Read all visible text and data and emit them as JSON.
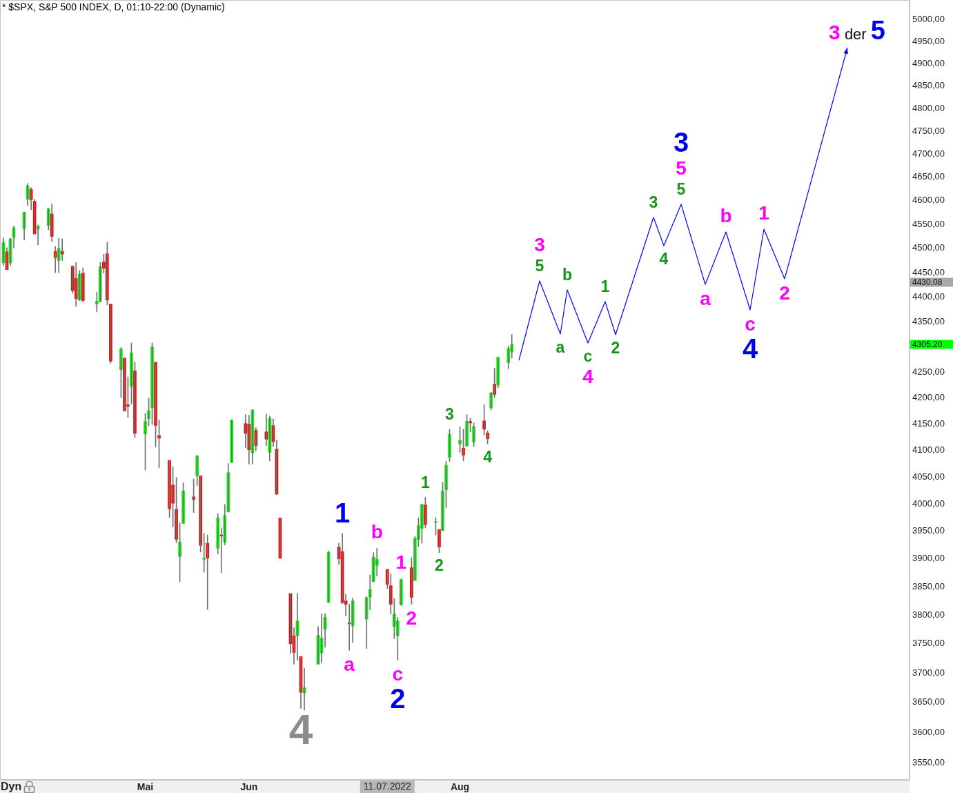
{
  "chart_data": {
    "type": "candlestick",
    "title": "* $SPX, S&P 500 INDEX, D, 01:10-22:00 (Dynamic)",
    "log": true,
    "ylim": [
      3522,
      5046
    ],
    "yticks": [
      {
        "value": 3550,
        "label": "3550,00"
      },
      {
        "value": 3600,
        "label": "3600,00"
      },
      {
        "value": 3650,
        "label": "3650,00"
      },
      {
        "value": 3700,
        "label": "3700,00"
      },
      {
        "value": 3750,
        "label": "3750,00"
      },
      {
        "value": 3800,
        "label": "3800,00"
      },
      {
        "value": 3850,
        "label": "3850,00"
      },
      {
        "value": 3900,
        "label": "3900,00"
      },
      {
        "value": 3950,
        "label": "3950,00"
      },
      {
        "value": 4000,
        "label": "4000,00"
      },
      {
        "value": 4050,
        "label": "4050,00"
      },
      {
        "value": 4100,
        "label": "4100,00"
      },
      {
        "value": 4150,
        "label": "4150,00"
      },
      {
        "value": 4200,
        "label": "4200,00"
      },
      {
        "value": 4250,
        "label": "4250,00"
      },
      {
        "value": 4350,
        "label": "4350,00"
      },
      {
        "value": 4400,
        "label": "4400,00"
      },
      {
        "value": 4450,
        "label": "4450,00"
      },
      {
        "value": 4500,
        "label": "4500,00"
      },
      {
        "value": 4550,
        "label": "4550,00"
      },
      {
        "value": 4600,
        "label": "4600,00"
      },
      {
        "value": 4650,
        "label": "4650,00"
      },
      {
        "value": 4700,
        "label": "4700,00"
      },
      {
        "value": 4750,
        "label": "4750,00"
      },
      {
        "value": 4800,
        "label": "4800,00"
      },
      {
        "value": 4850,
        "label": "4850,00"
      },
      {
        "value": 4900,
        "label": "4900,00"
      },
      {
        "value": 4950,
        "label": "4950,00"
      },
      {
        "value": 5000,
        "label": "5000,00"
      }
    ],
    "xlim": [
      "2022-03-21",
      "2022-12-09"
    ],
    "xticks": [
      {
        "value": "2022-05-02",
        "label": "Mai"
      },
      {
        "value": "2022-06-01",
        "label": "Jun"
      },
      {
        "value": "2022-08-01",
        "label": "Aug"
      }
    ],
    "x": [
      "2022-03-22",
      "2022-03-23",
      "2022-03-24",
      "2022-03-25",
      "2022-03-28",
      "2022-03-29",
      "2022-03-30",
      "2022-03-31",
      "2022-04-01",
      "2022-04-04",
      "2022-04-05",
      "2022-04-06",
      "2022-04-07",
      "2022-04-08",
      "2022-04-11",
      "2022-04-12",
      "2022-04-13",
      "2022-04-14",
      "2022-04-18",
      "2022-04-19",
      "2022-04-20",
      "2022-04-21",
      "2022-04-22",
      "2022-04-25",
      "2022-04-26",
      "2022-04-27",
      "2022-04-28",
      "2022-04-29",
      "2022-05-02",
      "2022-05-03",
      "2022-05-04",
      "2022-05-05",
      "2022-05-06",
      "2022-05-09",
      "2022-05-10",
      "2022-05-11",
      "2022-05-12",
      "2022-05-13",
      "2022-05-16",
      "2022-05-17",
      "2022-05-18",
      "2022-05-19",
      "2022-05-20",
      "2022-05-23",
      "2022-05-24",
      "2022-05-25",
      "2022-05-26",
      "2022-05-27",
      "2022-05-31",
      "2022-06-01",
      "2022-06-02",
      "2022-06-03",
      "2022-06-06",
      "2022-06-07",
      "2022-06-08",
      "2022-06-09",
      "2022-06-10",
      "2022-06-13",
      "2022-06-14",
      "2022-06-15",
      "2022-06-16",
      "2022-06-17",
      "2022-06-21",
      "2022-06-22",
      "2022-06-23",
      "2022-06-24",
      "2022-06-27",
      "2022-06-28",
      "2022-06-29",
      "2022-06-30",
      "2022-07-01",
      "2022-07-05",
      "2022-07-06",
      "2022-07-07",
      "2022-07-08",
      "2022-07-11",
      "2022-07-12",
      "2022-07-13",
      "2022-07-14",
      "2022-07-15",
      "2022-07-18",
      "2022-07-19",
      "2022-07-20",
      "2022-07-21",
      "2022-07-22",
      "2022-07-25",
      "2022-07-26",
      "2022-07-27",
      "2022-07-28",
      "2022-07-29",
      "2022-08-01",
      "2022-08-02",
      "2022-08-03",
      "2022-08-04",
      "2022-08-05",
      "2022-08-08",
      "2022-08-09",
      "2022-08-10",
      "2022-08-11",
      "2022-08-12",
      "2022-08-15",
      "2022-08-16"
    ],
    "ohlc": [
      [
        4470,
        4522,
        4465,
        4512
      ],
      [
        4493,
        4501,
        4456,
        4456
      ],
      [
        4470,
        4521,
        4465,
        4520
      ],
      [
        4523,
        4546,
        4501,
        4543
      ],
      [
        4541,
        4576,
        4518,
        4576
      ],
      [
        4603,
        4637,
        4590,
        4632
      ],
      [
        4624,
        4628,
        4581,
        4602
      ],
      [
        4599,
        4603,
        4530,
        4530
      ],
      [
        4540,
        4549,
        4507,
        4546
      ],
      [
        4548,
        4584,
        4539,
        4583
      ],
      [
        4572,
        4593,
        4514,
        4525
      ],
      [
        4494,
        4504,
        4450,
        4481
      ],
      [
        4475,
        4521,
        4450,
        4500
      ],
      [
        4494,
        4520,
        4475,
        4488
      ],
      [
        4463,
        4464,
        4408,
        4413
      ],
      [
        4438,
        4471,
        4381,
        4397
      ],
      [
        4394,
        4454,
        4393,
        4447
      ],
      [
        4449,
        4460,
        4391,
        4393
      ],
      [
        4386,
        4410,
        4370,
        4392
      ],
      [
        4391,
        4471,
        4390,
        4462
      ],
      [
        4472,
        4488,
        4449,
        4459
      ],
      [
        4489,
        4513,
        4384,
        4394
      ],
      [
        4386,
        4386,
        4268,
        4272
      ],
      [
        4255,
        4299,
        4201,
        4296
      ],
      [
        4278,
        4278,
        4175,
        4175
      ],
      [
        4187,
        4241,
        4163,
        4184
      ],
      [
        4223,
        4308,
        4189,
        4288
      ],
      [
        4253,
        4270,
        4124,
        4132
      ],
      [
        4131,
        4170,
        4063,
        4155
      ],
      [
        4160,
        4200,
        4147,
        4175
      ],
      [
        4181,
        4308,
        4149,
        4300
      ],
      [
        4270,
        4270,
        4106,
        4147
      ],
      [
        4128,
        4158,
        4067,
        4123
      ],
      [
        4081,
        4081,
        3975,
        3991
      ],
      [
        4035,
        4069,
        3958,
        4001
      ],
      [
        3990,
        4049,
        3929,
        3935
      ],
      [
        3904,
        3965,
        3859,
        3930
      ],
      [
        3964,
        4039,
        3964,
        4024
      ],
      [
        4013,
        4046,
        3984,
        4008
      ],
      [
        4052,
        4091,
        4034,
        4089
      ],
      [
        4052,
        4052,
        3912,
        3924
      ],
      [
        3899,
        3946,
        3876,
        3901
      ],
      [
        3928,
        3943,
        3810,
        3901
      ],
      [
        3919,
        3982,
        3909,
        3974
      ],
      [
        3943,
        3956,
        3875,
        3941
      ],
      [
        3930,
        3999,
        3925,
        3979
      ],
      [
        3985,
        4075,
        3985,
        4058
      ],
      [
        4077,
        4158,
        4077,
        4158
      ],
      [
        4151,
        4168,
        4105,
        4132
      ],
      [
        4150,
        4167,
        4074,
        4101
      ],
      [
        4095,
        4178,
        4074,
        4177
      ],
      [
        4138,
        4143,
        4099,
        4109
      ],
      [
        4135,
        4169,
        4109,
        4121
      ],
      [
        4096,
        4165,
        4080,
        4161
      ],
      [
        4147,
        4160,
        4107,
        4116
      ],
      [
        4102,
        4119,
        4017,
        4018
      ],
      [
        3974,
        3974,
        3900,
        3901
      ],
      [
        3838,
        3838,
        3734,
        3750
      ],
      [
        3764,
        3778,
        3715,
        3735
      ],
      [
        3764,
        3838,
        3722,
        3790
      ],
      [
        3728,
        3728,
        3640,
        3667
      ],
      [
        3666,
        3708,
        3637,
        3675
      ],
      [
        3715,
        3780,
        3715,
        3765
      ],
      [
        3734,
        3802,
        3718,
        3760
      ],
      [
        3775,
        3803,
        3744,
        3796
      ],
      [
        3822,
        3914,
        3822,
        3912
      ],
      [
        3921,
        3928,
        3890,
        3900
      ],
      [
        3913,
        3946,
        3820,
        3822
      ],
      [
        3825,
        3837,
        3799,
        3819
      ],
      [
        3786,
        3819,
        3739,
        3785
      ],
      [
        3781,
        3830,
        3752,
        3825
      ],
      [
        3793,
        3832,
        3742,
        3831
      ],
      [
        3832,
        3871,
        3809,
        3845
      ],
      [
        3859,
        3911,
        3859,
        3903
      ],
      [
        3888,
        3919,
        3869,
        3899
      ],
      [
        3881,
        3881,
        3847,
        3854
      ],
      [
        3852,
        3873,
        3802,
        3819
      ],
      [
        3780,
        3829,
        3759,
        3802
      ],
      [
        3764,
        3796,
        3722,
        3790
      ],
      [
        3818,
        3864,
        3817,
        3863
      ],
      [
        3884,
        3902,
        3819,
        3831
      ],
      [
        3861,
        3940,
        3861,
        3937
      ],
      [
        3935,
        3974,
        3922,
        3960
      ],
      [
        3955,
        3999,
        3928,
        3999
      ],
      [
        3998,
        4012,
        3956,
        3962
      ],
      [
        3966,
        3975,
        3943,
        3967
      ],
      [
        3953,
        3953,
        3911,
        3921
      ],
      [
        3951,
        4040,
        3951,
        4024
      ],
      [
        4026,
        4079,
        3993,
        4072
      ],
      [
        4087,
        4140,
        4079,
        4130
      ],
      [
        4112,
        4145,
        4096,
        4119
      ],
      [
        4104,
        4140,
        4080,
        4091
      ],
      [
        4108,
        4168,
        4108,
        4155
      ],
      [
        4155,
        4161,
        4135,
        4152
      ],
      [
        4116,
        4152,
        4107,
        4145
      ],
      [
        4156,
        4187,
        4129,
        4140
      ],
      [
        4133,
        4137,
        4112,
        4122
      ],
      [
        4181,
        4211,
        4177,
        4210
      ],
      [
        4227,
        4258,
        4201,
        4207
      ],
      [
        4225,
        4280,
        4220,
        4280
      ],
      [
        4269,
        4302,
        4257,
        4297
      ],
      [
        4290,
        4325,
        4278,
        4305.2
      ]
    ],
    "colors": [
      "#00ff00",
      "#ff0000",
      "#00ff00",
      "#00ff00",
      "#00ff00",
      "#00ff00",
      "#ff0000",
      "#ff0000",
      "#00ff00",
      "#00ff00",
      "#ff0000",
      "#ff0000",
      "#00ff00",
      "#ff0000",
      "#ff0000",
      "#ff0000",
      "#00ff00",
      "#ff0000",
      "#00ff00",
      "#00ff00",
      "#ff0000",
      "#ff0000",
      "#ff0000",
      "#00ff00",
      "#ff0000",
      "#ff0000",
      "#00ff00",
      "#ff0000",
      "#00ff00",
      "#00ff00",
      "#00ff00",
      "#ff0000",
      "#ff0000",
      "#ff0000",
      "#ff0000",
      "#ff0000",
      "#00ff00",
      "#00ff00",
      "#ff0000",
      "#00ff00",
      "#ff0000",
      "#00ff00",
      "#ff0000",
      "#00ff00",
      "#ff0000",
      "#00ff00",
      "#00ff00",
      "#00ff00",
      "#ff0000",
      "#ff0000",
      "#00ff00",
      "#ff0000",
      "#ff0000",
      "#00ff00",
      "#ff0000",
      "#ff0000",
      "#ff0000",
      "#ff0000",
      "#ff0000",
      "#00ff00",
      "#ff0000",
      "#00ff00",
      "#00ff00",
      "#00ff00",
      "#00ff00",
      "#00ff00",
      "#ff0000",
      "#ff0000",
      "#ff0000",
      "#ff0000",
      "#00ff00",
      "#00ff00",
      "#00ff00",
      "#00ff00",
      "#00ff00",
      "#ff0000",
      "#ff0000",
      "#00ff00",
      "#00ff00",
      "#00ff00",
      "#ff0000",
      "#00ff00",
      "#00ff00",
      "#00ff00",
      "#ff0000",
      "#00ff00",
      "#ff0000",
      "#00ff00",
      "#00ff00",
      "#00ff00",
      "#00ff00",
      "#ff0000",
      "#00ff00",
      "#ff0000",
      "#00ff00",
      "#ff0000",
      "#ff0000",
      "#00ff00",
      "#ff0000",
      "#00ff00",
      "#00ff00",
      "#00ff00"
    ],
    "annotations": [
      "Dyn",
      "4430,08",
      "4305,20",
      "11.07.2022",
      {
        "text": "4",
        "x": "2022-06-16",
        "y": 3640
      },
      {
        "text": "1",
        "x": "2022-06-28",
        "y": 3946
      },
      {
        "text": "a",
        "x": "2022-06-30",
        "y": 3739
      },
      {
        "text": "b",
        "x": "2022-07-08",
        "y": 3919
      },
      {
        "text": "1",
        "x": "2022-07-15",
        "y": 3864
      },
      {
        "text": "c",
        "x": "2022-07-14",
        "y": 3722
      },
      {
        "text": "2",
        "x": "2022-07-14",
        "y": 3722
      },
      {
        "text": "2",
        "x": "2022-07-18",
        "y": 3819
      },
      {
        "text": "1",
        "x": "2022-07-22",
        "y": 4012
      },
      {
        "text": "2",
        "x": "2022-07-26",
        "y": 3911
      },
      {
        "text": "3",
        "x": "2022-07-29",
        "y": 4140
      },
      {
        "text": "4",
        "x": "2022-08-09",
        "y": 4112
      },
      "5",
      "3",
      "a",
      "b",
      "c",
      "4",
      "1",
      "2",
      "3",
      "4",
      "5",
      "5",
      "3",
      "a",
      "b",
      "c",
      "4",
      "1",
      "2",
      "3 der 5"
    ]
  }
}
